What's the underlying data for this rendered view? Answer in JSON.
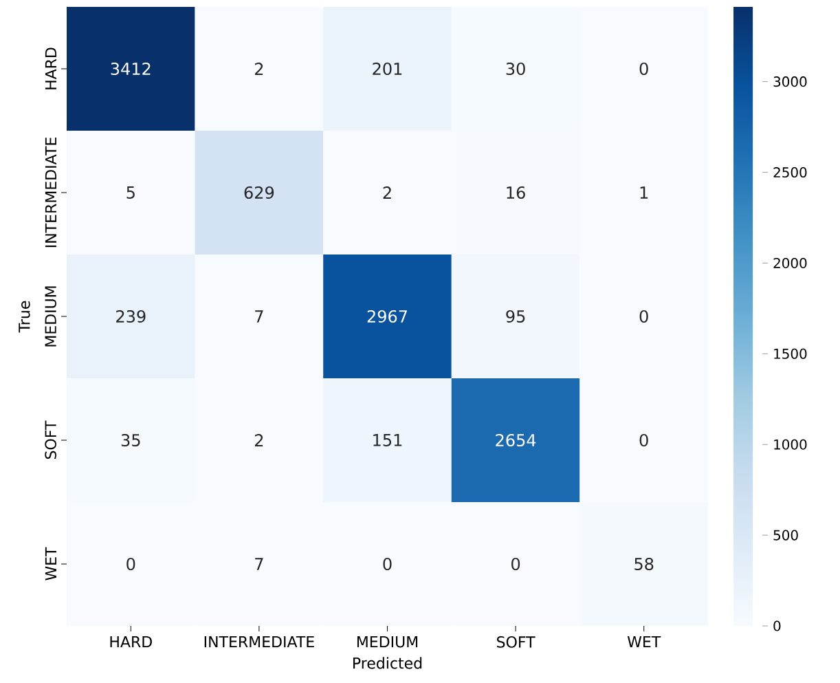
{
  "chart_data": {
    "type": "heatmap",
    "xlabel": "Predicted",
    "ylabel": "True",
    "categories": [
      "HARD",
      "INTERMEDIATE",
      "MEDIUM",
      "SOFT",
      "WET"
    ],
    "y_categories": [
      "HARD",
      "INTERMEDIATE",
      "MEDIUM",
      "SOFT",
      "WET"
    ],
    "cells": [
      [
        3412,
        2,
        201,
        30,
        0
      ],
      [
        5,
        629,
        2,
        16,
        1
      ],
      [
        239,
        7,
        2967,
        95,
        0
      ],
      [
        35,
        2,
        151,
        2654,
        0
      ],
      [
        0,
        7,
        0,
        0,
        58
      ]
    ],
    "clim": [
      0,
      3412
    ],
    "cticks": [
      0,
      500,
      1000,
      1500,
      2000,
      2500,
      3000
    ],
    "data_labels": true
  }
}
